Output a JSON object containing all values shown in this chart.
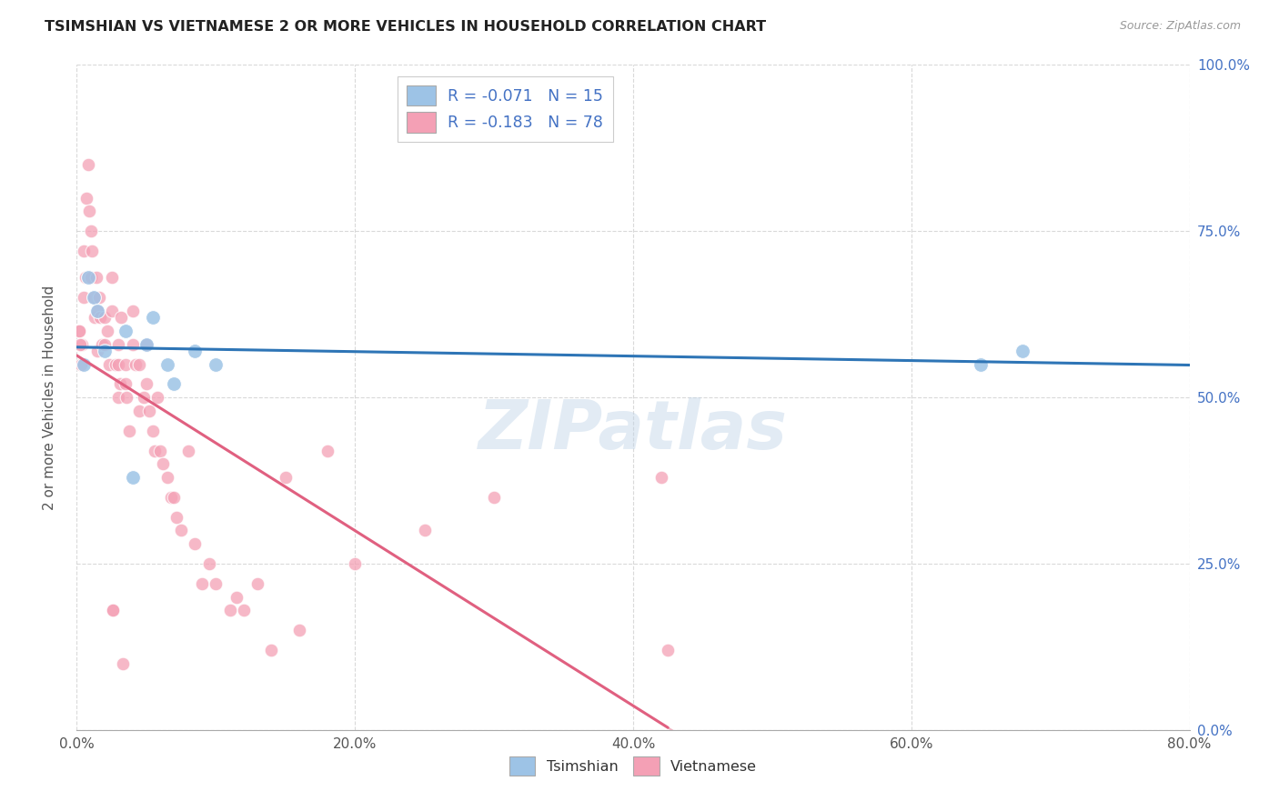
{
  "title": "TSIMSHIAN VS VIETNAMESE 2 OR MORE VEHICLES IN HOUSEHOLD CORRELATION CHART",
  "source": "Source: ZipAtlas.com",
  "ylabel": "2 or more Vehicles in Household",
  "xlim": [
    0.0,
    80.0
  ],
  "ylim": [
    0.0,
    100.0
  ],
  "xlabel_vals": [
    0.0,
    20.0,
    40.0,
    60.0,
    80.0
  ],
  "ylabel_vals": [
    0.0,
    25.0,
    50.0,
    75.0,
    100.0
  ],
  "tsimshian_color": "#9dc3e6",
  "vietnamese_color": "#f4a0b5",
  "tsimshian_line_color": "#2e75b6",
  "vietnamese_line_color": "#e06080",
  "watermark": "ZIPatlas",
  "tsimshian_x": [
    0.5,
    0.8,
    1.2,
    1.5,
    2.0,
    3.5,
    5.0,
    5.5,
    6.5,
    7.0,
    8.5,
    10.0,
    65.0,
    68.0,
    4.0
  ],
  "tsimshian_y": [
    55.0,
    68.0,
    65.0,
    63.0,
    57.0,
    60.0,
    58.0,
    62.0,
    55.0,
    52.0,
    57.0,
    55.0,
    55.0,
    57.0,
    38.0
  ],
  "vietnamese_x": [
    0.2,
    0.3,
    0.4,
    0.5,
    0.5,
    0.6,
    0.7,
    0.8,
    0.9,
    1.0,
    1.0,
    1.1,
    1.2,
    1.3,
    1.4,
    1.5,
    1.5,
    1.6,
    1.7,
    1.8,
    2.0,
    2.0,
    2.2,
    2.3,
    2.5,
    2.5,
    2.6,
    2.8,
    3.0,
    3.0,
    3.0,
    3.1,
    3.2,
    3.3,
    3.5,
    3.5,
    3.6,
    3.8,
    4.0,
    4.0,
    4.2,
    4.5,
    4.5,
    4.8,
    5.0,
    5.0,
    5.2,
    5.5,
    5.6,
    5.8,
    6.0,
    6.2,
    6.5,
    6.8,
    7.0,
    7.2,
    7.5,
    8.0,
    8.5,
    9.0,
    9.5,
    10.0,
    11.0,
    11.5,
    12.0,
    13.0,
    14.0,
    15.0,
    16.0,
    18.0,
    20.0,
    25.0,
    30.0,
    42.0,
    42.5,
    0.15,
    0.25,
    2.6
  ],
  "vietnamese_y": [
    60.0,
    55.0,
    58.0,
    72.0,
    65.0,
    68.0,
    80.0,
    85.0,
    78.0,
    75.0,
    68.0,
    72.0,
    65.0,
    62.0,
    68.0,
    63.0,
    57.0,
    65.0,
    62.0,
    58.0,
    62.0,
    58.0,
    60.0,
    55.0,
    68.0,
    63.0,
    18.0,
    55.0,
    58.0,
    55.0,
    50.0,
    52.0,
    62.0,
    10.0,
    55.0,
    52.0,
    50.0,
    45.0,
    63.0,
    58.0,
    55.0,
    55.0,
    48.0,
    50.0,
    58.0,
    52.0,
    48.0,
    45.0,
    42.0,
    50.0,
    42.0,
    40.0,
    38.0,
    35.0,
    35.0,
    32.0,
    30.0,
    42.0,
    28.0,
    22.0,
    25.0,
    22.0,
    18.0,
    20.0,
    18.0,
    22.0,
    12.0,
    38.0,
    15.0,
    42.0,
    25.0,
    30.0,
    35.0,
    38.0,
    12.0,
    60.0,
    58.0,
    18.0
  ],
  "background_color": "#ffffff",
  "grid_color": "#d0d0d0",
  "legend1_label": "R = -0.071   N = 15",
  "legend2_label": "R = -0.183   N = 78",
  "bottom_legend1": "Tsimshian",
  "bottom_legend2": "Vietnamese"
}
